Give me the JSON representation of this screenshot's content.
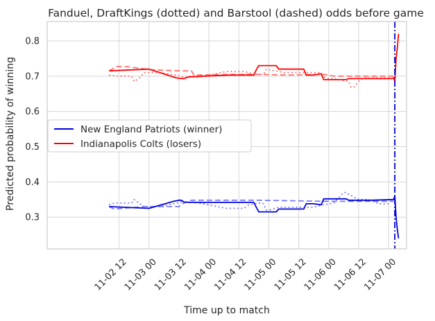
{
  "chart_data": {
    "type": "line",
    "title": "Fanduel, DraftKings (dotted) and Barstool (dashed) odds before game",
    "xlabel": "Time up to match",
    "ylabel": "Predicted probability of winning",
    "x_unit": "hours",
    "xlim": [
      -16.8,
      127.2
    ],
    "ylim": [
      0.21,
      0.855
    ],
    "x_ticks": [
      {
        "x": 12,
        "label": "11-02 12"
      },
      {
        "x": 24,
        "label": "11-03 00"
      },
      {
        "x": 36,
        "label": "11-03 12"
      },
      {
        "x": 48,
        "label": "11-04 00"
      },
      {
        "x": 60,
        "label": "11-04 12"
      },
      {
        "x": 72,
        "label": "11-05 00"
      },
      {
        "x": 84,
        "label": "11-05 12"
      },
      {
        "x": 96,
        "label": "11-06 00"
      },
      {
        "x": 108,
        "label": "11-06 12"
      },
      {
        "x": 120,
        "label": "11-07 00"
      }
    ],
    "y_ticks": [
      0.3,
      0.4,
      0.5,
      0.6,
      0.7,
      0.8
    ],
    "grid": true,
    "legend": {
      "position": "center-left",
      "entries": [
        {
          "label": "New England Patriots (winner)",
          "color": "#0000dd"
        },
        {
          "label": "Indianapolis Colts (losers)",
          "color": "#ff0000"
        }
      ]
    },
    "game_start_line": {
      "x": 122.5,
      "color": "#0000cc",
      "style": "dashdot"
    },
    "series": [
      {
        "team": "Colts",
        "book": "Fanduel",
        "style": "solid",
        "color": "#ff0000",
        "x": [
          8,
          24,
          35,
          37,
          38,
          40,
          56,
          66,
          67,
          68,
          75,
          76,
          86,
          87,
          90,
          93,
          94,
          98,
          103,
          104,
          112,
          113,
          120,
          121,
          122,
          122.5,
          123,
          123.5,
          124
        ],
        "y": [
          0.715,
          0.72,
          0.695,
          0.693,
          0.693,
          0.698,
          0.703,
          0.703,
          0.718,
          0.73,
          0.73,
          0.72,
          0.72,
          0.703,
          0.703,
          0.707,
          0.69,
          0.69,
          0.69,
          0.693,
          0.693,
          0.693,
          0.693,
          0.693,
          0.695,
          0.685,
          0.75,
          0.78,
          0.82
        ]
      },
      {
        "team": "Colts",
        "book": "DraftKings",
        "style": "dotted",
        "color": "#ff7070",
        "x": [
          8,
          11,
          17,
          18,
          20,
          22,
          28,
          35,
          37,
          40,
          44,
          46,
          55,
          58,
          62,
          64,
          66,
          70,
          71,
          72,
          75,
          78,
          83,
          86,
          92,
          95,
          98,
          104,
          105,
          106,
          108,
          110,
          116,
          121
        ],
        "y": [
          0.703,
          0.7,
          0.7,
          0.685,
          0.693,
          0.71,
          0.71,
          0.703,
          0.697,
          0.697,
          0.697,
          0.7,
          0.713,
          0.713,
          0.713,
          0.71,
          0.705,
          0.705,
          0.72,
          0.718,
          0.715,
          0.71,
          0.71,
          0.71,
          0.71,
          0.693,
          0.693,
          0.685,
          0.668,
          0.668,
          0.685,
          0.695,
          0.695,
          0.695
        ]
      },
      {
        "team": "Colts",
        "book": "Barstool",
        "style": "dashed",
        "color": "#ff7070",
        "x": [
          8,
          11,
          15,
          25,
          36,
          41,
          42,
          58,
          68,
          79,
          94,
          98,
          122
        ],
        "y": [
          0.715,
          0.727,
          0.727,
          0.718,
          0.715,
          0.715,
          0.703,
          0.705,
          0.705,
          0.703,
          0.705,
          0.7,
          0.7
        ]
      },
      {
        "team": "Patriots",
        "book": "Fanduel",
        "style": "solid",
        "color": "#0000dd",
        "x": [
          8,
          24,
          34,
          36,
          37,
          38,
          40,
          56,
          66,
          67,
          68,
          75,
          76,
          86,
          87,
          90,
          93,
          94,
          103,
          104,
          112,
          113,
          122,
          122.5,
          123,
          123.5,
          124
        ],
        "y": [
          0.33,
          0.325,
          0.345,
          0.348,
          0.348,
          0.343,
          0.342,
          0.342,
          0.342,
          0.328,
          0.315,
          0.315,
          0.323,
          0.323,
          0.338,
          0.338,
          0.335,
          0.352,
          0.352,
          0.348,
          0.348,
          0.348,
          0.35,
          0.36,
          0.3,
          0.265,
          0.24
        ]
      },
      {
        "team": "Patriots",
        "book": "DraftKings",
        "style": "dotted",
        "color": "#7a7aff",
        "x": [
          8,
          10,
          14,
          17,
          18,
          20,
          22,
          28,
          34,
          37,
          38,
          42,
          55,
          58,
          62,
          64,
          68,
          70,
          71,
          72,
          76,
          82,
          90,
          94,
          98,
          102,
          103,
          104,
          108,
          112,
          116,
          121
        ],
        "y": [
          0.335,
          0.34,
          0.34,
          0.34,
          0.35,
          0.34,
          0.33,
          0.33,
          0.338,
          0.343,
          0.343,
          0.343,
          0.325,
          0.325,
          0.325,
          0.335,
          0.34,
          0.338,
          0.32,
          0.32,
          0.328,
          0.328,
          0.328,
          0.335,
          0.34,
          0.37,
          0.37,
          0.365,
          0.35,
          0.35,
          0.338,
          0.338
        ]
      },
      {
        "team": "Patriots",
        "book": "Barstool",
        "style": "dashed",
        "color": "#7a7aff",
        "x": [
          8,
          10,
          22,
          36,
          38,
          41,
          68,
          94,
          122
        ],
        "y": [
          0.33,
          0.323,
          0.33,
          0.33,
          0.34,
          0.348,
          0.348,
          0.345,
          0.345
        ]
      }
    ]
  }
}
